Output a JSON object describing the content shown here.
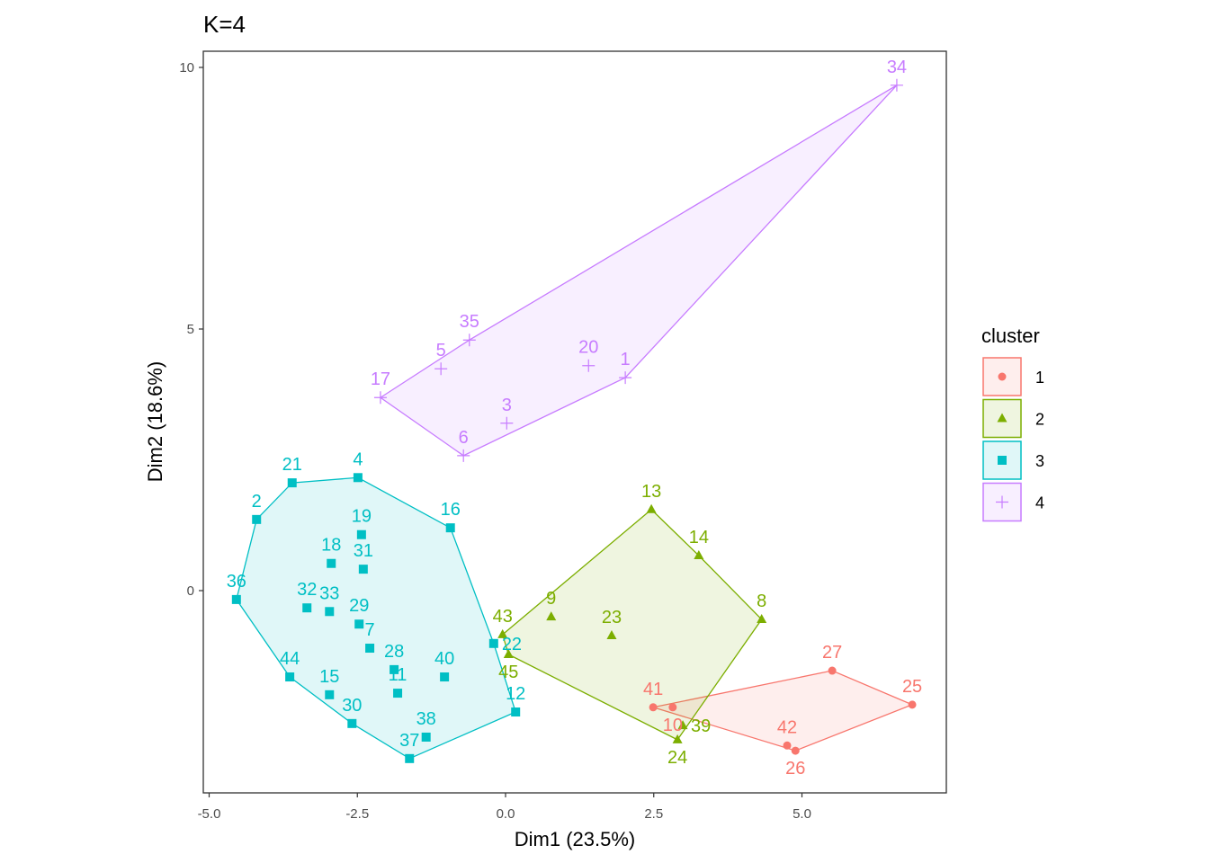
{
  "chart_data": {
    "type": "scatter",
    "title": "K=4",
    "xlabel": "Dim1 (23.5%)",
    "ylabel": "Dim2 (18.6%)",
    "xlim": [
      -5.1,
      7.4
    ],
    "ylim": [
      -3.9,
      10.3
    ],
    "xticks": [
      -5.0,
      -2.5,
      0.0,
      2.5,
      5.0
    ],
    "xtick_labels": [
      "-5.0",
      "-2.5",
      "0.0",
      "2.5",
      "5.0"
    ],
    "yticks": [
      0,
      5,
      10
    ],
    "ytick_labels": [
      "0",
      "5",
      "10"
    ],
    "grid": false,
    "legend": {
      "title": "cluster",
      "placement": "right",
      "entries": [
        "1",
        "2",
        "3",
        "4"
      ]
    },
    "colors": {
      "1": "#F8766D",
      "2": "#7CAE00",
      "3": "#00BFC4",
      "4": "#C77CFF"
    },
    "shapes": {
      "1": "circle",
      "2": "triangle",
      "3": "square",
      "4": "plus"
    },
    "points": [
      {
        "label": "41",
        "cluster": "1",
        "x": 2.49,
        "y": -2.23
      },
      {
        "label": "10",
        "cluster": "1",
        "x": 2.82,
        "y": -2.23
      },
      {
        "label": "27",
        "cluster": "1",
        "x": 5.51,
        "y": -1.53
      },
      {
        "label": "25",
        "cluster": "1",
        "x": 6.86,
        "y": -2.18
      },
      {
        "label": "42",
        "cluster": "1",
        "x": 4.75,
        "y": -2.96
      },
      {
        "label": "26",
        "cluster": "1",
        "x": 4.89,
        "y": -3.06
      },
      {
        "label": "13",
        "cluster": "2",
        "x": 2.46,
        "y": 1.55
      },
      {
        "label": "14",
        "cluster": "2",
        "x": 3.26,
        "y": 0.67
      },
      {
        "label": "8",
        "cluster": "2",
        "x": 4.32,
        "y": -0.55
      },
      {
        "label": "9",
        "cluster": "2",
        "x": 0.77,
        "y": -0.5
      },
      {
        "label": "23",
        "cluster": "2",
        "x": 1.79,
        "y": -0.86
      },
      {
        "label": "43",
        "cluster": "2",
        "x": -0.05,
        "y": -0.84
      },
      {
        "label": "45",
        "cluster": "2",
        "x": 0.05,
        "y": -1.22
      },
      {
        "label": "24",
        "cluster": "2",
        "x": 2.9,
        "y": -2.85
      },
      {
        "label": "39",
        "cluster": "2",
        "x": 2.99,
        "y": -2.58
      },
      {
        "label": "21",
        "cluster": "3",
        "x": -3.6,
        "y": 2.06
      },
      {
        "label": "4",
        "cluster": "3",
        "x": -2.49,
        "y": 2.16
      },
      {
        "label": "2",
        "cluster": "3",
        "x": -4.2,
        "y": 1.36
      },
      {
        "label": "16",
        "cluster": "3",
        "x": -0.93,
        "y": 1.2
      },
      {
        "label": "19",
        "cluster": "3",
        "x": -2.43,
        "y": 1.07
      },
      {
        "label": "18",
        "cluster": "3",
        "x": -2.94,
        "y": 0.52
      },
      {
        "label": "31",
        "cluster": "3",
        "x": -2.4,
        "y": 0.41
      },
      {
        "label": "36",
        "cluster": "3",
        "x": -4.54,
        "y": -0.17
      },
      {
        "label": "32",
        "cluster": "3",
        "x": -3.35,
        "y": -0.33
      },
      {
        "label": "33",
        "cluster": "3",
        "x": -2.97,
        "y": -0.4
      },
      {
        "label": "29",
        "cluster": "3",
        "x": -2.47,
        "y": -0.64
      },
      {
        "label": "7",
        "cluster": "3",
        "x": -2.29,
        "y": -1.1
      },
      {
        "label": "28",
        "cluster": "3",
        "x": -1.88,
        "y": -1.51
      },
      {
        "label": "11",
        "cluster": "3",
        "x": -1.82,
        "y": -1.96
      },
      {
        "label": "40",
        "cluster": "3",
        "x": -1.03,
        "y": -1.65
      },
      {
        "label": "44",
        "cluster": "3",
        "x": -3.64,
        "y": -1.65
      },
      {
        "label": "15",
        "cluster": "3",
        "x": -2.97,
        "y": -1.99
      },
      {
        "label": "30",
        "cluster": "3",
        "x": -2.59,
        "y": -2.54
      },
      {
        "label": "38",
        "cluster": "3",
        "x": -1.34,
        "y": -2.8
      },
      {
        "label": "37",
        "cluster": "3",
        "x": -1.62,
        "y": -3.21
      },
      {
        "label": "12",
        "cluster": "3",
        "x": 0.17,
        "y": -2.32
      },
      {
        "label": "22",
        "cluster": "3",
        "x": -0.2,
        "y": -1.01
      },
      {
        "label": "34",
        "cluster": "4",
        "x": 6.6,
        "y": 9.66
      },
      {
        "label": "35",
        "cluster": "4",
        "x": -0.61,
        "y": 4.79
      },
      {
        "label": "5",
        "cluster": "4",
        "x": -1.09,
        "y": 4.24
      },
      {
        "label": "20",
        "cluster": "4",
        "x": 1.4,
        "y": 4.3
      },
      {
        "label": "1",
        "cluster": "4",
        "x": 2.02,
        "y": 4.07
      },
      {
        "label": "17",
        "cluster": "4",
        "x": -2.11,
        "y": 3.69
      },
      {
        "label": "3",
        "cluster": "4",
        "x": 0.02,
        "y": 3.2
      },
      {
        "label": "6",
        "cluster": "4",
        "x": -0.71,
        "y": 2.58
      }
    ]
  }
}
